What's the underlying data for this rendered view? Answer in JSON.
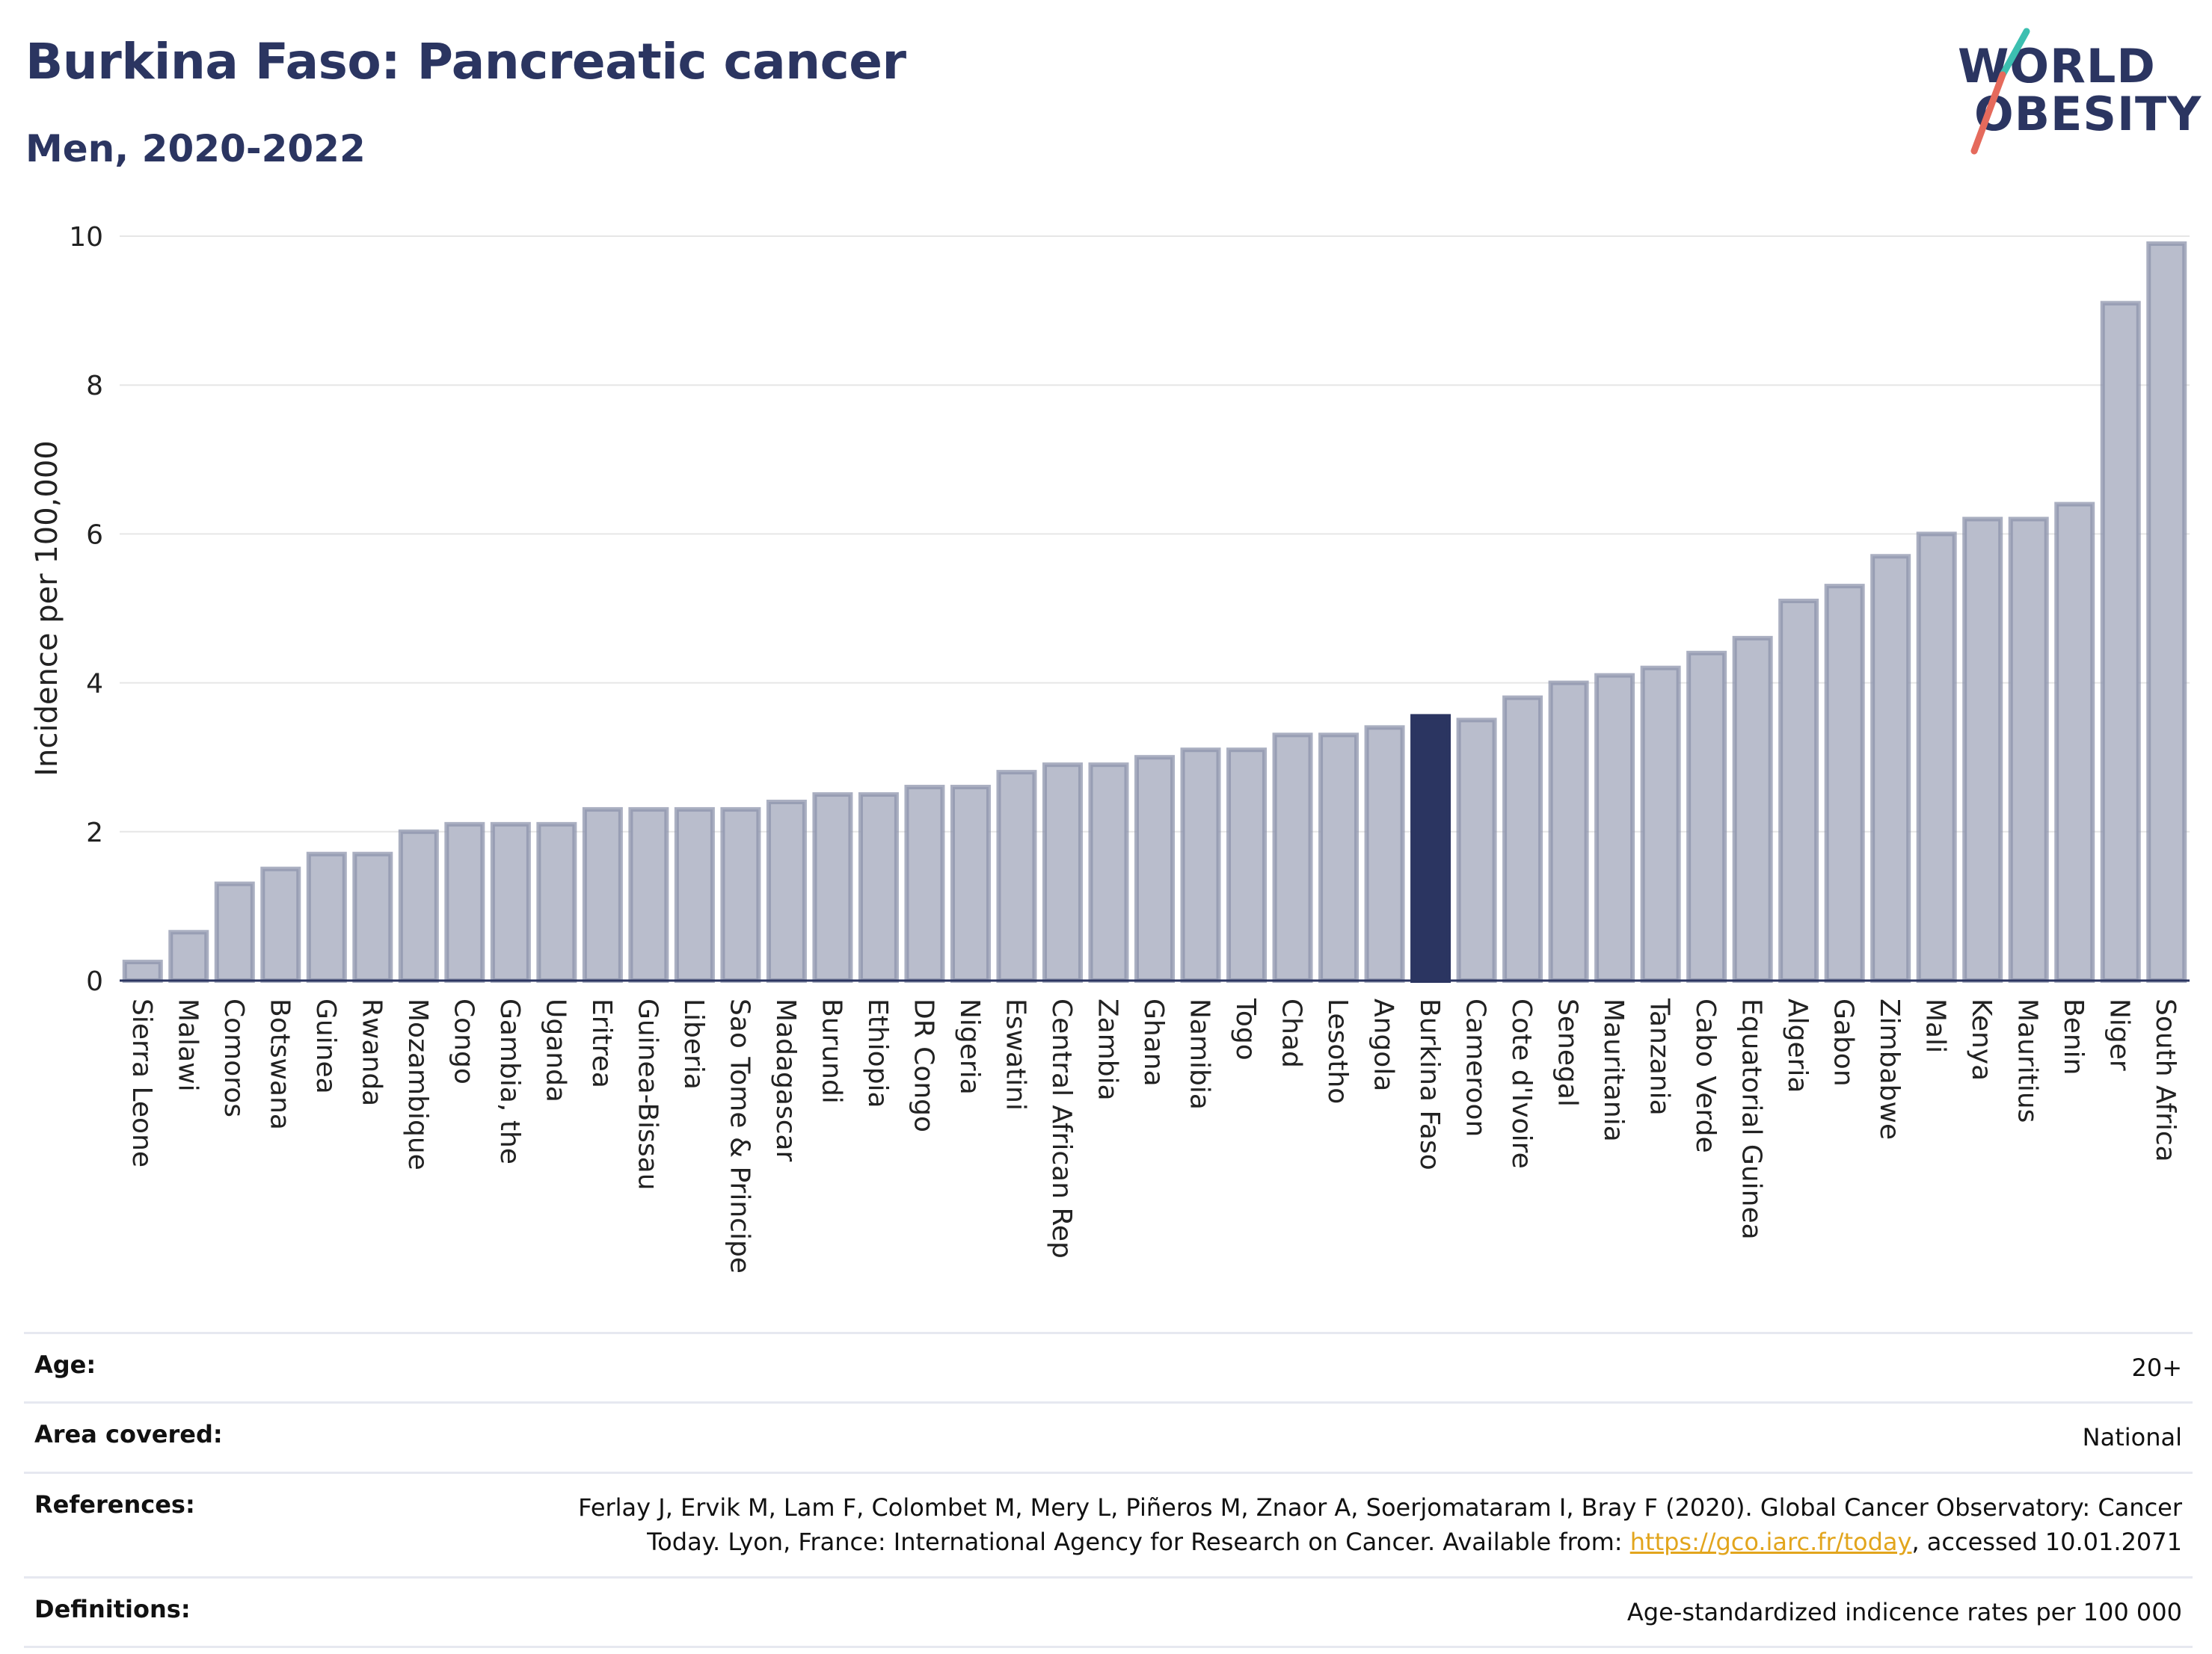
{
  "header": {
    "title": "Burkina Faso: Pancreatic cancer",
    "subtitle": "Men, 2020-2022"
  },
  "logo": {
    "line1": "WORLD",
    "line2": "OBESITY"
  },
  "colors": {
    "bar": "#b9bdcc",
    "bar_stroke": "#8e94ac",
    "highlight": "#2b3561",
    "title": "#2b3561",
    "grid": "#e6e6e6",
    "link": "#e2a51d",
    "logo_slash_teal": "#3cbfb0",
    "logo_slash_red": "#e56a5c"
  },
  "chart_data": {
    "type": "bar",
    "title": "Burkina Faso: Pancreatic cancer",
    "subtitle": "Men, 2020-2022",
    "xlabel": "",
    "ylabel": "Incidence per 100,000",
    "ylim": [
      0,
      10
    ],
    "yticks": [
      0,
      2,
      4,
      6,
      8,
      10
    ],
    "grid": true,
    "highlight": "Burkina Faso",
    "categories": [
      "Sierra Leone",
      "Malawi",
      "Comoros",
      "Botswana",
      "Guinea",
      "Rwanda",
      "Mozambique",
      "Congo",
      "Gambia, the",
      "Uganda",
      "Eritrea",
      "Guinea-Bissau",
      "Liberia",
      "Sao Tome & Principe",
      "Madagascar",
      "Burundi",
      "Ethiopia",
      "DR Congo",
      "Nigeria",
      "Eswatini",
      "Central African Rep",
      "Zambia",
      "Ghana",
      "Namibia",
      "Togo",
      "Chad",
      "Lesotho",
      "Angola",
      "Burkina Faso",
      "Cameroon",
      "Cote d'Ivoire",
      "Senegal",
      "Mauritania",
      "Tanzania",
      "Cabo Verde",
      "Equatorial Guinea",
      "Algeria",
      "Gabon",
      "Zimbabwe",
      "Mali",
      "Kenya",
      "Mauritius",
      "Benin",
      "Niger",
      "South Africa"
    ],
    "values": [
      0.25,
      0.65,
      1.3,
      1.5,
      1.7,
      1.7,
      2.0,
      2.1,
      2.1,
      2.1,
      2.3,
      2.3,
      2.3,
      2.3,
      2.4,
      2.5,
      2.5,
      2.6,
      2.6,
      2.8,
      2.9,
      2.9,
      3.0,
      3.1,
      3.1,
      3.3,
      3.3,
      3.4,
      3.55,
      3.5,
      3.8,
      4.0,
      4.1,
      4.2,
      4.4,
      4.6,
      5.1,
      5.3,
      5.7,
      6.0,
      6.2,
      6.2,
      6.4,
      9.1,
      9.9
    ]
  },
  "info_table": [
    {
      "label": "Age:",
      "value": "20+"
    },
    {
      "label": "Area covered:",
      "value": "National"
    },
    {
      "label": "References:",
      "value_pre": "Ferlay J, Ervik M, Lam F, Colombet M, Mery L, Piñeros M, Znaor A, Soerjomataram I, Bray F (2020). Global Cancer Observatory: Cancer Today. Lyon, France: International Agency for Research on Cancer. Available from: ",
      "link": "https://gco.iarc.fr/today",
      "value_post": ", accessed 10.01.2071"
    },
    {
      "label": "Definitions:",
      "value": "Age-standardized indicence rates per 100 000"
    }
  ]
}
